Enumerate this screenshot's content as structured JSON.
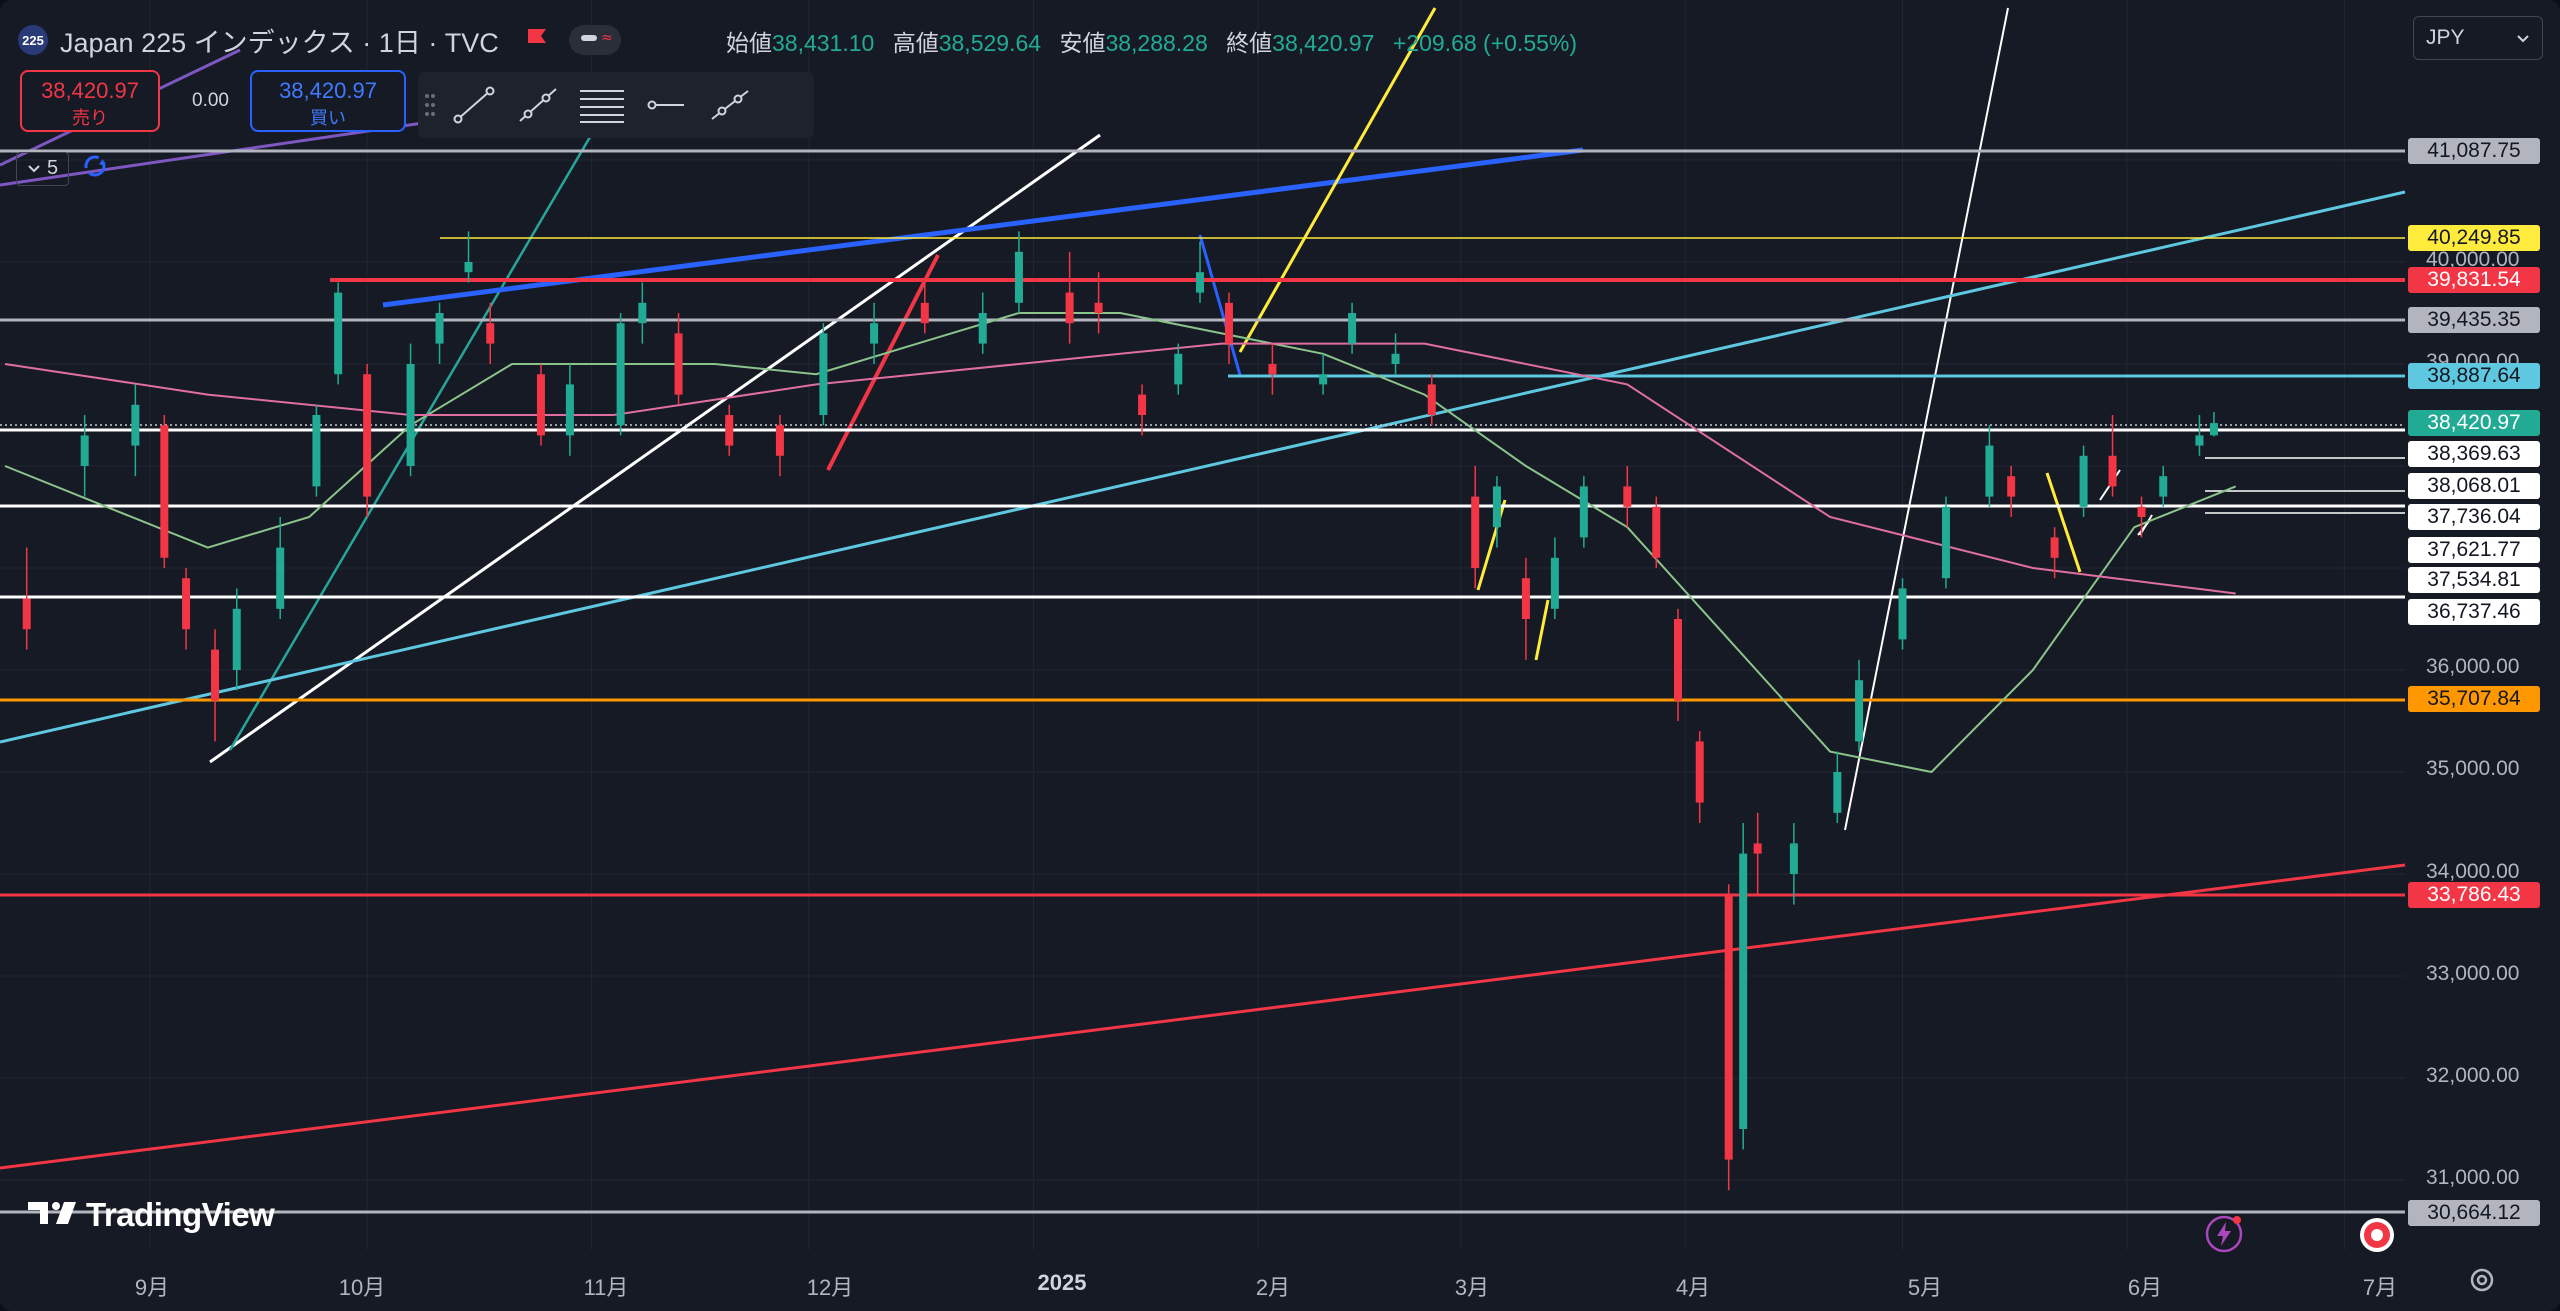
{
  "header": {
    "symbol_badge": "225",
    "symbol_title": "Japan 225 インデックス · 1日 · TVC",
    "ohlc": {
      "open_label": "始値",
      "open": "38,431.10",
      "high_label": "高値",
      "high": "38,529.64",
      "low_label": "安値",
      "low": "38,288.28",
      "close_label": "終値",
      "close": "38,420.97",
      "change": "+209.68 (+0.55%)"
    }
  },
  "trade": {
    "sell_price": "38,420.97",
    "sell_label": "売り",
    "spread": "0.00",
    "buy_price": "38,420.97",
    "buy_label": "買い"
  },
  "toolbar": {
    "tools": [
      "trend-line-icon",
      "ray-icon",
      "parallel-channel-icon",
      "horizontal-ray-icon",
      "extended-line-icon"
    ]
  },
  "indicators": {
    "count": "5"
  },
  "currency": {
    "selected": "JPY"
  },
  "price_axis": {
    "ticks": [
      "40,000.00",
      "39,000.00",
      "36,000.00",
      "35,000.00",
      "34,000.00",
      "33,000.00",
      "32,000.00",
      "31,000.00"
    ],
    "labels": [
      {
        "text": "41,087.75",
        "bg": "#b2b5be",
        "fg": "#131722"
      },
      {
        "text": "40,249.85",
        "bg": "#ffeb3b",
        "fg": "#131722"
      },
      {
        "text": "39,831.54",
        "bg": "#f23645",
        "fg": "#ffffff"
      },
      {
        "text": "39,435.35",
        "bg": "#b2b5be",
        "fg": "#131722"
      },
      {
        "text": "38,887.64",
        "bg": "#5ec8e0",
        "fg": "#131722"
      },
      {
        "text": "38,420.97",
        "bg": "#22ab94",
        "fg": "#ffffff"
      },
      {
        "text": "38,369.63",
        "bg": "#ffffff",
        "fg": "#131722"
      },
      {
        "text": "38,068.01",
        "bg": "#ffffff",
        "fg": "#131722"
      },
      {
        "text": "37,736.04",
        "bg": "#ffffff",
        "fg": "#131722"
      },
      {
        "text": "37,621.77",
        "bg": "#ffffff",
        "fg": "#131722"
      },
      {
        "text": "37,534.81",
        "bg": "#ffffff",
        "fg": "#131722"
      },
      {
        "text": "36,737.46",
        "bg": "#ffffff",
        "fg": "#131722"
      },
      {
        "text": "35,707.84",
        "bg": "#ff9800",
        "fg": "#131722"
      },
      {
        "text": "33,786.43",
        "bg": "#f23645",
        "fg": "#ffffff"
      },
      {
        "text": "30,664.12",
        "bg": "#b2b5be",
        "fg": "#131722"
      }
    ]
  },
  "time_axis": {
    "labels": [
      "9月",
      "10月",
      "11月",
      "12月",
      "2025",
      "2月",
      "3月",
      "4月",
      "5月",
      "6月",
      "7月"
    ]
  },
  "branding": {
    "logo_text": "TradingView"
  },
  "colors": {
    "up": "#22ab94",
    "down": "#f23645",
    "background": "#161a25",
    "grid": "#222633"
  },
  "chart_data": {
    "type": "candlestick",
    "title": "Japan 225 インデックス · 1日 · TVC",
    "ylim": [
      30500,
      42000
    ],
    "x_range": [
      "2024-08-12",
      "2025-07-08"
    ],
    "xlabels": [
      "9月",
      "10月",
      "11月",
      "12月",
      "2025",
      "2月",
      "3月",
      "4月",
      "5月",
      "6月",
      "7月"
    ],
    "grid": true,
    "series": [
      {
        "name": "candles",
        "points": [
          [
            "2024-08-15",
            36700,
            37200,
            36200,
            36400
          ],
          [
            "2024-08-23",
            38000,
            38500,
            37700,
            38300
          ],
          [
            "2024-08-30",
            38200,
            38800,
            37900,
            38600
          ],
          [
            "2024-09-03",
            38400,
            38500,
            37000,
            37100
          ],
          [
            "2024-09-06",
            36900,
            37000,
            36200,
            36400
          ],
          [
            "2024-09-10",
            36200,
            36400,
            35300,
            35700
          ],
          [
            "2024-09-13",
            36000,
            36800,
            35800,
            36600
          ],
          [
            "2024-09-19",
            36600,
            37500,
            36500,
            37200
          ],
          [
            "2024-09-24",
            37800,
            38600,
            37700,
            38500
          ],
          [
            "2024-09-27",
            38900,
            39800,
            38800,
            39700
          ],
          [
            "2024-10-01",
            38900,
            39000,
            37500,
            37700
          ],
          [
            "2024-10-07",
            38000,
            39200,
            37900,
            39000
          ],
          [
            "2024-10-11",
            39200,
            39600,
            39000,
            39500
          ],
          [
            "2024-10-15",
            39900,
            40300,
            39800,
            40000
          ],
          [
            "2024-10-18",
            39400,
            39600,
            39000,
            39200
          ],
          [
            "2024-10-25",
            38900,
            39000,
            38200,
            38300
          ],
          [
            "2024-10-29",
            38300,
            39000,
            38100,
            38800
          ],
          [
            "2024-11-05",
            38400,
            39500,
            38300,
            39400
          ],
          [
            "2024-11-08",
            39400,
            39800,
            39200,
            39600
          ],
          [
            "2024-11-13",
            39300,
            39500,
            38600,
            38700
          ],
          [
            "2024-11-20",
            38500,
            38600,
            38100,
            38200
          ],
          [
            "2024-11-27",
            38400,
            38500,
            37900,
            38100
          ],
          [
            "2024-12-03",
            38500,
            39400,
            38400,
            39300
          ],
          [
            "2024-12-10",
            39200,
            39600,
            39000,
            39400
          ],
          [
            "2024-12-17",
            39600,
            39800,
            39300,
            39400
          ],
          [
            "2024-12-25",
            39200,
            39700,
            39100,
            39500
          ],
          [
            "2024-12-30",
            39600,
            40300,
            39500,
            40100
          ],
          [
            "2025-01-06",
            39700,
            40100,
            39200,
            39400
          ],
          [
            "2025-01-10",
            39600,
            39900,
            39300,
            39500
          ],
          [
            "2025-01-16",
            38700,
            38800,
            38300,
            38500
          ],
          [
            "2025-01-21",
            38800,
            39200,
            38700,
            39100
          ],
          [
            "2025-01-24",
            39700,
            40200,
            39600,
            39900
          ],
          [
            "2025-01-28",
            39600,
            39700,
            39000,
            39200
          ],
          [
            "2025-02-03",
            39000,
            39200,
            38700,
            38900
          ],
          [
            "2025-02-10",
            38800,
            39100,
            38700,
            38900
          ],
          [
            "2025-02-14",
            39200,
            39600,
            39100,
            39500
          ],
          [
            "2025-02-20",
            39000,
            39300,
            38900,
            39100
          ],
          [
            "2025-02-25",
            38800,
            38900,
            38400,
            38500
          ],
          [
            "2025-03-03",
            37700,
            38000,
            36800,
            37000
          ],
          [
            "2025-03-06",
            37400,
            37900,
            37200,
            37800
          ],
          [
            "2025-03-10",
            36900,
            37100,
            36100,
            36500
          ],
          [
            "2025-03-14",
            36600,
            37300,
            36500,
            37100
          ],
          [
            "2025-03-18",
            37300,
            37900,
            37200,
            37800
          ],
          [
            "2025-03-24",
            37800,
            38000,
            37400,
            37600
          ],
          [
            "2025-03-28",
            37600,
            37700,
            37000,
            37100
          ],
          [
            "2025-03-31",
            36500,
            36600,
            35500,
            35700
          ],
          [
            "2025-04-03",
            35300,
            35400,
            34500,
            34700
          ],
          [
            "2025-04-07",
            33800,
            33900,
            30900,
            31200
          ],
          [
            "2025-04-09",
            31500,
            34500,
            31300,
            34200
          ],
          [
            "2025-04-11",
            34300,
            34600,
            33800,
            34200
          ],
          [
            "2025-04-16",
            34000,
            34500,
            33700,
            34300
          ],
          [
            "2025-04-22",
            34600,
            35200,
            34500,
            35000
          ],
          [
            "2025-04-25",
            35300,
            36100,
            35200,
            35900
          ],
          [
            "2025-05-01",
            36300,
            36900,
            36200,
            36800
          ],
          [
            "2025-05-07",
            36900,
            37700,
            36800,
            37600
          ],
          [
            "2025-05-13",
            37700,
            38400,
            37600,
            38200
          ],
          [
            "2025-05-16",
            37900,
            38000,
            37500,
            37700
          ],
          [
            "2025-05-22",
            37300,
            37400,
            36900,
            37100
          ],
          [
            "2025-05-26",
            37600,
            38200,
            37500,
            38100
          ],
          [
            "2025-05-30",
            38100,
            38500,
            37700,
            37800
          ],
          [
            "2025-06-03",
            37600,
            37700,
            37300,
            37500
          ],
          [
            "2025-06-06",
            37700,
            38000,
            37600,
            37900
          ],
          [
            "2025-06-11",
            38200,
            38500,
            38100,
            38300
          ],
          [
            "2025-06-13",
            38300,
            38530,
            38290,
            38421
          ]
        ]
      },
      {
        "name": "ma-green",
        "points": [
          [
            "2024-08-12",
            38000
          ],
          [
            "2024-08-26",
            37600
          ],
          [
            "2024-09-09",
            37200
          ],
          [
            "2024-09-23",
            37500
          ],
          [
            "2024-10-07",
            38400
          ],
          [
            "2024-10-21",
            39000
          ],
          [
            "2024-11-04",
            39000
          ],
          [
            "2024-11-18",
            39000
          ],
          [
            "2024-12-02",
            38900
          ],
          [
            "2024-12-16",
            39200
          ],
          [
            "2024-12-30",
            39500
          ],
          [
            "2025-01-13",
            39500
          ],
          [
            "2025-01-27",
            39300
          ],
          [
            "2025-02-10",
            39100
          ],
          [
            "2025-02-24",
            38700
          ],
          [
            "2025-03-10",
            38000
          ],
          [
            "2025-03-24",
            37400
          ],
          [
            "2025-04-07",
            36300
          ],
          [
            "2025-04-21",
            35200
          ],
          [
            "2025-05-05",
            35000
          ],
          [
            "2025-05-19",
            36000
          ],
          [
            "2025-06-02",
            37400
          ],
          [
            "2025-06-16",
            37800
          ]
        ]
      },
      {
        "name": "ma-pink",
        "points": [
          [
            "2024-08-12",
            39000
          ],
          [
            "2024-09-09",
            38700
          ],
          [
            "2024-10-07",
            38500
          ],
          [
            "2024-11-04",
            38500
          ],
          [
            "2024-12-02",
            38800
          ],
          [
            "2024-12-30",
            39000
          ],
          [
            "2025-01-27",
            39200
          ],
          [
            "2025-02-24",
            39200
          ],
          [
            "2025-03-24",
            38800
          ],
          [
            "2025-04-21",
            37500
          ],
          [
            "2025-05-19",
            37000
          ],
          [
            "2025-06-16",
            36750
          ]
        ]
      }
    ]
  }
}
